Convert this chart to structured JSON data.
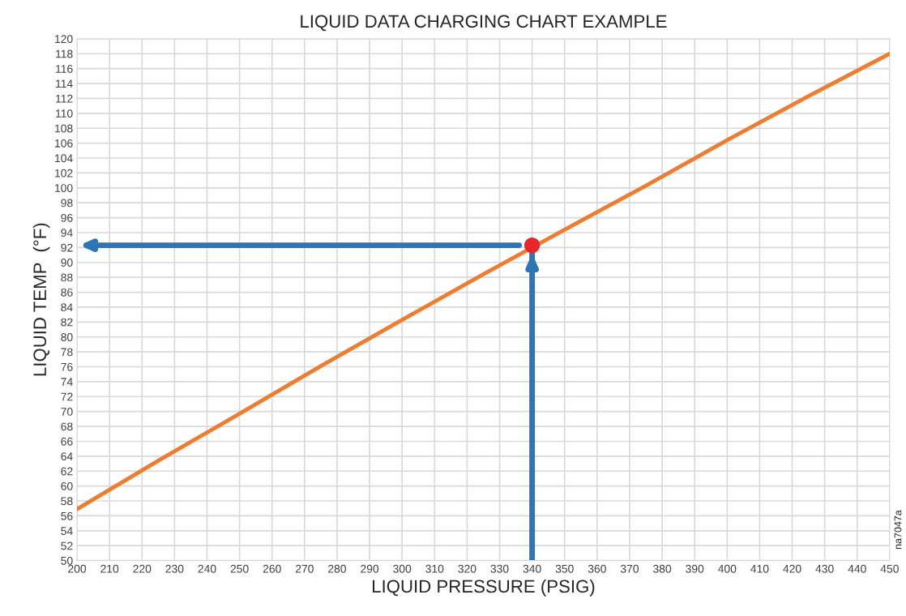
{
  "chart_data": {
    "type": "line",
    "title": "LIQUID DATA CHARGING CHART EXAMPLE",
    "xlabel": "LIQUID PRESSURE (PSIG)",
    "ylabel": "LIQUID TEMP  (°F)",
    "series": [
      {
        "color": "#ed7d31",
        "x": [
          200,
          225,
          250,
          275,
          300,
          325,
          350,
          375,
          400,
          425,
          450
        ],
        "values": [
          56.9,
          63.4,
          69.7,
          76.1,
          82.3,
          88.4,
          94.4,
          100.3,
          106.4,
          112.3,
          118.0
        ]
      },
      {
        "type": "scatter",
        "color": "#e8262a",
        "x": [
          340
        ],
        "values": [
          92.3
        ],
        "marker": "circle"
      }
    ],
    "ref_lines": [
      {
        "axis": "x",
        "value": 340,
        "color": "#2e75b6"
      },
      {
        "axis": "y",
        "value": 92.3,
        "color": "#2e75b6"
      }
    ],
    "annotations": [
      "na7047a"
    ],
    "xlim": [
      200,
      450
    ],
    "xticks": [
      200,
      210,
      220,
      230,
      240,
      250,
      260,
      270,
      280,
      290,
      300,
      310,
      320,
      330,
      340,
      350,
      360,
      370,
      380,
      390,
      400,
      410,
      420,
      430,
      440,
      450
    ],
    "ylim": [
      50,
      120
    ],
    "yticks": [
      50,
      52,
      54,
      56,
      58,
      60,
      62,
      64,
      66,
      68,
      70,
      72,
      74,
      76,
      78,
      80,
      82,
      84,
      86,
      88,
      90,
      92,
      94,
      96,
      98,
      100,
      102,
      104,
      106,
      108,
      110,
      112,
      114,
      116,
      118,
      120
    ],
    "grid": true
  }
}
